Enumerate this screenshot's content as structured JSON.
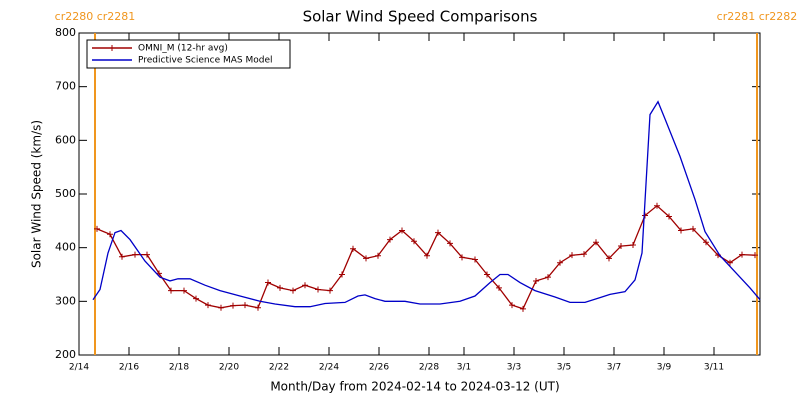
{
  "chart_data": {
    "type": "line",
    "title": "Solar Wind Speed Comparisons",
    "xlabel": "Month/Day from 2024-02-14 to 2024-03-12 (UT)",
    "ylabel": "Solar Wind Speed (km/s)",
    "xlim": [
      0,
      27.24
    ],
    "ylim": [
      200,
      800
    ],
    "yticks": [
      200,
      300,
      400,
      500,
      600,
      700,
      800
    ],
    "xticks": [
      {
        "value": 0,
        "label": "2/14"
      },
      {
        "value": 2,
        "label": "2/16"
      },
      {
        "value": 4,
        "label": "2/18"
      },
      {
        "value": 6,
        "label": "2/20"
      },
      {
        "value": 8,
        "label": "2/22"
      },
      {
        "value": 10,
        "label": "2/24"
      },
      {
        "value": 12,
        "label": "2/26"
      },
      {
        "value": 14,
        "label": "2/28"
      },
      {
        "value": 15.4,
        "label": "3/1"
      },
      {
        "value": 17.4,
        "label": "3/3"
      },
      {
        "value": 19.4,
        "label": "3/5"
      },
      {
        "value": 21.4,
        "label": "3/7"
      },
      {
        "value": 23.4,
        "label": "3/9"
      },
      {
        "value": 25.4,
        "label": "3/11"
      }
    ],
    "annotations": [
      {
        "text": "cr2280 cr2281",
        "x": 0.64,
        "color": "#f0961e"
      },
      {
        "text": "cr2281 cr2282",
        "x": 27.12,
        "color": "#f0961e"
      }
    ],
    "series": [
      {
        "name": "OMNI_M (12-hr avg)",
        "color": "#a00000",
        "markers": true,
        "x": [
          0.72,
          1.24,
          1.72,
          2.24,
          2.72,
          3.2,
          3.68,
          4.2,
          4.68,
          5.16,
          5.68,
          6.16,
          6.64,
          7.16,
          7.56,
          8.04,
          8.56,
          9.04,
          9.56,
          10.04,
          10.52,
          10.96,
          11.48,
          11.96,
          12.44,
          12.92,
          13.4,
          13.92,
          14.36,
          14.84,
          15.32,
          15.84,
          16.32,
          16.8,
          17.32,
          17.76,
          18.28,
          18.76,
          19.24,
          19.72,
          20.2,
          20.68,
          21.2,
          21.68,
          22.16,
          22.64,
          23.12,
          23.6,
          24.08,
          24.56,
          25.08,
          25.56,
          26.04,
          26.52,
          27.04
        ],
        "values": [
          435,
          425,
          383,
          387,
          387,
          352,
          320,
          320,
          305,
          293,
          288,
          292,
          293,
          288,
          335,
          325,
          320,
          330,
          322,
          320,
          350,
          398,
          380,
          385,
          415,
          432,
          412,
          385,
          428,
          408,
          382,
          378,
          350,
          325,
          293,
          286,
          338,
          345,
          372,
          386,
          388,
          410,
          380,
          403,
          405,
          460,
          478,
          458,
          432,
          435,
          410,
          386,
          372,
          387,
          386
        ]
      },
      {
        "name": "Predictive Science MAS Model",
        "color": "#0000c8",
        "markers": false,
        "x": [
          0.56,
          0.84,
          1.16,
          1.44,
          1.68,
          2.04,
          2.64,
          3.24,
          3.64,
          3.96,
          4.44,
          5.04,
          5.64,
          6.44,
          7.24,
          7.84,
          8.64,
          9.24,
          9.84,
          10.64,
          11.16,
          11.44,
          11.84,
          12.24,
          13.04,
          13.64,
          14.44,
          15.24,
          15.84,
          16.44,
          16.84,
          17.16,
          17.64,
          18.24,
          19.04,
          19.64,
          20.24,
          20.84,
          21.24,
          21.84,
          22.24,
          22.52,
          22.84,
          23.16,
          23.44,
          24.04,
          24.64,
          25.04,
          25.64,
          26.24,
          26.84,
          27.24
        ],
        "values": [
          303,
          322,
          390,
          428,
          432,
          415,
          375,
          345,
          338,
          342,
          342,
          330,
          320,
          310,
          300,
          295,
          290,
          290,
          296,
          298,
          310,
          312,
          305,
          300,
          300,
          295,
          295,
          300,
          310,
          335,
          350,
          350,
          335,
          320,
          308,
          298,
          298,
          307,
          313,
          318,
          340,
          390,
          648,
          672,
          640,
          570,
          490,
          430,
          385,
          355,
          325,
          303
        ]
      }
    ]
  }
}
